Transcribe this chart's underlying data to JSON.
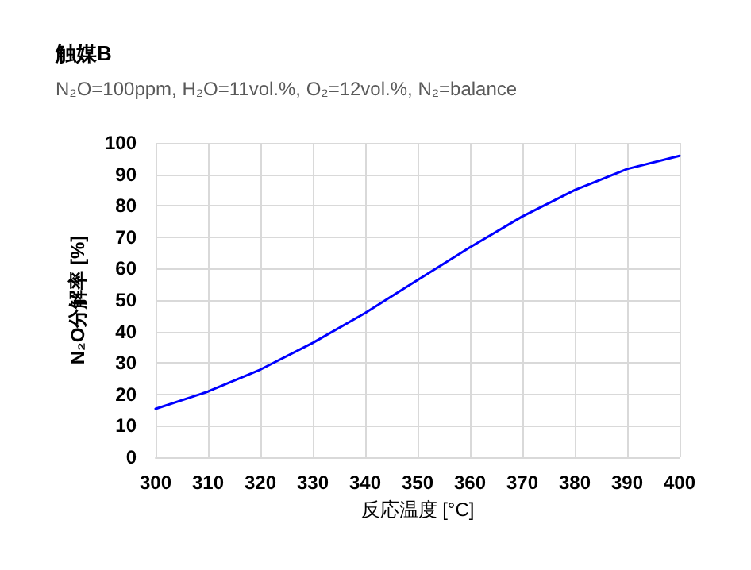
{
  "chart_data": {
    "type": "line",
    "title": "触媒B",
    "subtitle": "N₂O=100ppm, H₂O=11vol.%, O₂=12vol.%, N₂=balance",
    "xlabel": "反応温度 [°C]",
    "ylabel": "N₂O分解率 [%]",
    "x": [
      300,
      310,
      320,
      330,
      340,
      350,
      360,
      370,
      380,
      390,
      400
    ],
    "series": [
      {
        "color": "#0000ff",
        "values": [
          15.4,
          20.9,
          27.9,
          36.4,
          45.9,
          56.4,
          66.8,
          76.6,
          85.0,
          91.7,
          95.9
        ]
      }
    ],
    "xlim": [
      300,
      400
    ],
    "xticks": [
      300,
      310,
      320,
      330,
      340,
      350,
      360,
      370,
      380,
      390,
      400
    ],
    "ylim": [
      0,
      100
    ],
    "yticks": [
      0,
      10,
      20,
      30,
      40,
      50,
      60,
      70,
      80,
      90,
      100
    ],
    "grid": true,
    "marker": "none",
    "line_style": "solid"
  }
}
